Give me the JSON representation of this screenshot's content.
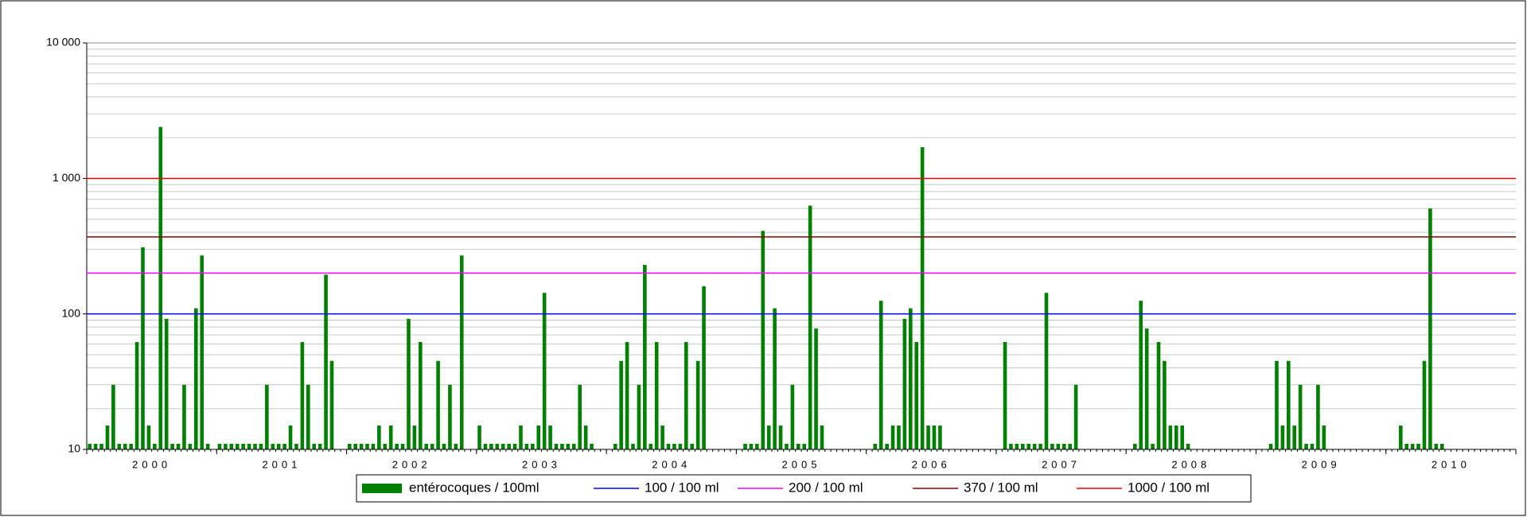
{
  "chart_data": {
    "type": "bar",
    "bar_name": "entérocoques / 100ml",
    "color": "#008000",
    "log_scale": true,
    "grid": true,
    "minor_grid": true,
    "ylim": [
      10,
      10000
    ],
    "yticks": [
      10,
      100,
      {
        "value": 1000,
        "label": "1 000"
      },
      {
        "value": 10000,
        "label": "10 000"
      }
    ],
    "groups": [
      {
        "label": "2000",
        "values": [
          11,
          11,
          11,
          15,
          30,
          11,
          11,
          11,
          62,
          310,
          15,
          11,
          2400,
          92,
          11,
          11,
          30,
          11,
          110,
          270,
          11,
          null
        ]
      },
      {
        "label": "2001",
        "values": [
          11,
          11,
          11,
          11,
          11,
          11,
          11,
          11,
          30,
          11,
          11,
          11,
          15,
          11,
          62,
          30,
          11,
          11,
          195,
          45,
          null,
          null
        ]
      },
      {
        "label": "2002",
        "values": [
          11,
          11,
          11,
          11,
          11,
          15,
          11,
          15,
          11,
          11,
          92,
          15,
          62,
          11,
          11,
          45,
          11,
          30,
          11,
          270,
          null,
          null
        ]
      },
      {
        "label": "2003",
        "values": [
          15,
          11,
          11,
          11,
          11,
          11,
          11,
          15,
          11,
          11,
          15,
          143,
          15,
          11,
          11,
          11,
          11,
          30,
          15,
          11,
          null,
          null
        ]
      },
      {
        "label": "2004",
        "values": [
          null,
          11,
          45,
          62,
          11,
          30,
          230,
          11,
          62,
          15,
          11,
          11,
          11,
          62,
          11,
          45,
          160,
          null,
          null,
          null,
          null,
          null
        ]
      },
      {
        "label": "2005",
        "values": [
          null,
          11,
          11,
          11,
          410,
          15,
          110,
          15,
          11,
          30,
          11,
          11,
          630,
          78,
          15,
          null,
          null,
          null,
          null,
          null,
          null,
          null
        ]
      },
      {
        "label": "2006",
        "values": [
          null,
          11,
          125,
          11,
          15,
          15,
          92,
          110,
          62,
          1700,
          15,
          15,
          15,
          null,
          null,
          null,
          null,
          null,
          null,
          null,
          null,
          null
        ]
      },
      {
        "label": "2007",
        "values": [
          null,
          62,
          11,
          11,
          11,
          11,
          11,
          11,
          143,
          11,
          11,
          11,
          11,
          30,
          null,
          null,
          null,
          null,
          null,
          null,
          null,
          null
        ]
      },
      {
        "label": "2008",
        "values": [
          null,
          11,
          125,
          78,
          11,
          62,
          45,
          15,
          15,
          15,
          11,
          null,
          null,
          null,
          null,
          null,
          null,
          null,
          null,
          null,
          null,
          null
        ]
      },
      {
        "label": "2009",
        "values": [
          null,
          null,
          11,
          45,
          15,
          45,
          15,
          30,
          11,
          11,
          30,
          15,
          null,
          null,
          null,
          null,
          null,
          null,
          null,
          null,
          null,
          null
        ]
      },
      {
        "label": "2010",
        "values": [
          null,
          null,
          15,
          11,
          11,
          11,
          45,
          600,
          11,
          11,
          null,
          null,
          null,
          null,
          null,
          null,
          null,
          null,
          null,
          null,
          null,
          null
        ]
      }
    ],
    "thresholds": [
      {
        "name": "100 / 100 ml",
        "color": "#0000ff",
        "value": 100
      },
      {
        "name": "200 / 100 ml",
        "color": "#ff00ff",
        "value": 200
      },
      {
        "name": "370 / 100 ml",
        "color": "#8b0000",
        "value": 370
      },
      {
        "name": "1000 / 100 ml",
        "color": "#ff0000",
        "value": 1000
      }
    ]
  }
}
